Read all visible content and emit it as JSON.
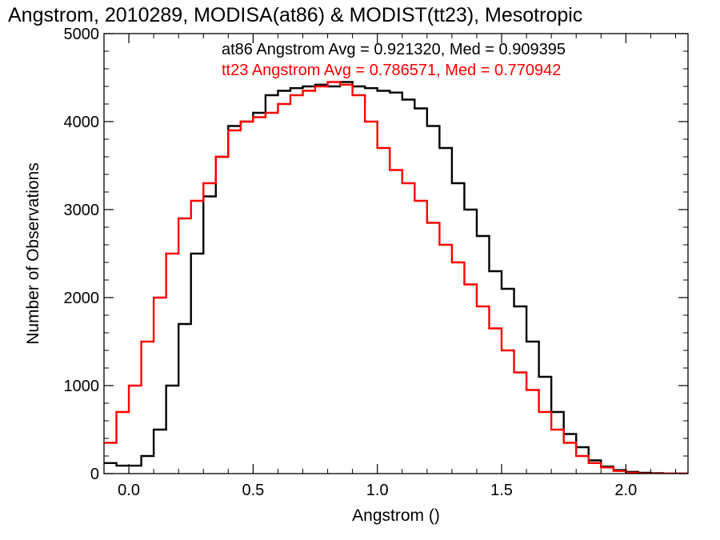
{
  "chart_data": {
    "type": "line",
    "title": "Angstrom, 2010289, MODISA(at86) & MODIST(tt23), Mesotropic",
    "xlabel": "Angstrom ()",
    "ylabel": "Number of Observations",
    "xlim": [
      -0.1,
      2.25
    ],
    "ylim": [
      0,
      5000
    ],
    "x_ticks": [
      "0.0",
      "0.5",
      "1.0",
      "1.5",
      "2.0"
    ],
    "y_ticks": [
      "0",
      "1000",
      "2000",
      "3000",
      "4000",
      "5000"
    ],
    "legend": {
      "placement": "top-right"
    },
    "annotations": [
      "at86 Angstrom Avg = 0.921320, Med = 0.909395",
      "tt23 Angstrom Avg = 0.786571, Med = 0.770942"
    ],
    "series": [
      {
        "id": "at86",
        "color": "#000000",
        "x": [
          -0.1,
          -0.05,
          0.0,
          0.05,
          0.1,
          0.15,
          0.2,
          0.25,
          0.3,
          0.35,
          0.4,
          0.45,
          0.5,
          0.55,
          0.6,
          0.65,
          0.7,
          0.75,
          0.8,
          0.85,
          0.9,
          0.95,
          1.0,
          1.05,
          1.1,
          1.15,
          1.2,
          1.25,
          1.3,
          1.35,
          1.4,
          1.45,
          1.5,
          1.55,
          1.6,
          1.65,
          1.7,
          1.75,
          1.8,
          1.85,
          1.9,
          1.95,
          2.0,
          2.05,
          2.1,
          2.15,
          2.2,
          2.25
        ],
        "y": [
          120,
          90,
          90,
          200,
          500,
          1000,
          1700,
          2500,
          3150,
          3600,
          3950,
          4000,
          4100,
          4300,
          4350,
          4380,
          4400,
          4420,
          4400,
          4450,
          4400,
          4380,
          4350,
          4330,
          4250,
          4150,
          3950,
          3700,
          3300,
          3000,
          2700,
          2300,
          2100,
          1900,
          1500,
          1100,
          700,
          450,
          300,
          150,
          80,
          40,
          20,
          10,
          5,
          0,
          0,
          0
        ]
      },
      {
        "id": "tt23",
        "color": "#ff0000",
        "x": [
          -0.1,
          -0.05,
          0.0,
          0.05,
          0.1,
          0.15,
          0.2,
          0.25,
          0.3,
          0.35,
          0.4,
          0.45,
          0.5,
          0.55,
          0.6,
          0.65,
          0.7,
          0.75,
          0.8,
          0.85,
          0.9,
          0.95,
          1.0,
          1.05,
          1.1,
          1.15,
          1.2,
          1.25,
          1.3,
          1.35,
          1.4,
          1.45,
          1.5,
          1.55,
          1.6,
          1.65,
          1.7,
          1.75,
          1.8,
          1.85,
          1.9,
          1.95,
          2.0,
          2.05,
          2.1,
          2.15,
          2.2,
          2.25
        ],
        "y": [
          350,
          700,
          1000,
          1500,
          2000,
          2500,
          2900,
          3100,
          3300,
          3600,
          3900,
          4000,
          4050,
          4100,
          4200,
          4300,
          4350,
          4400,
          4450,
          4420,
          4300,
          4000,
          3700,
          3450,
          3300,
          3100,
          2850,
          2600,
          2400,
          2150,
          1900,
          1650,
          1400,
          1150,
          950,
          700,
          500,
          350,
          200,
          120,
          70,
          30,
          10,
          0,
          0,
          0,
          0,
          0
        ]
      }
    ]
  }
}
